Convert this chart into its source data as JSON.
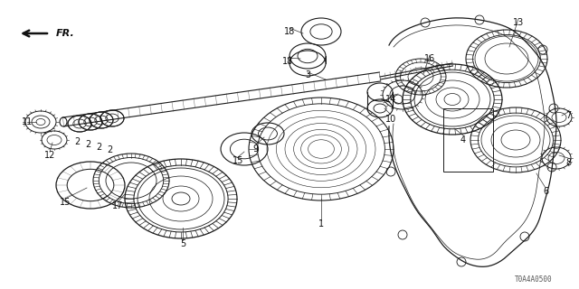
{
  "background_color": "#ffffff",
  "diagram_code": "T0A4A0500",
  "color_dark": "#1a1a1a",
  "color_mid": "#444444",
  "color_light": "#888888"
}
